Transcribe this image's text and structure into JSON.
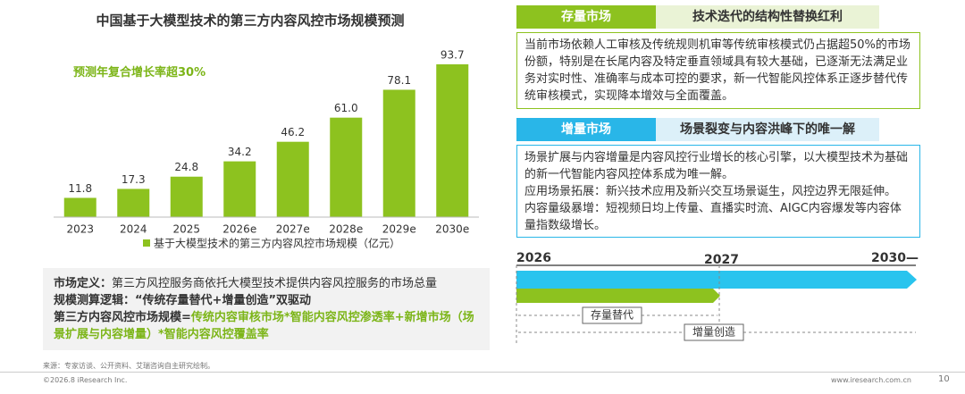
{
  "chart_data": {
    "type": "bar",
    "title": "中国基于大模型技术的第三方内容风控市场规模预测",
    "annotation": "预测年复合增长率超30%",
    "categories": [
      "2023",
      "2024",
      "2025",
      "2026e",
      "2027e",
      "2028e",
      "2029e",
      "2030e"
    ],
    "series": [
      {
        "name": "基于大模型技术的第三方内容风控市场规模（亿元）",
        "color": "#8dc21f",
        "values": [
          11.8,
          17.3,
          24.8,
          34.2,
          46.2,
          61.0,
          78.1,
          93.7
        ],
        "value_labels": [
          "11.8",
          "17.3",
          "24.8",
          "34.2",
          "46.2",
          "61.0",
          "78.1",
          "93.7"
        ]
      }
    ]
  },
  "definition": [
    {
      "label": "市场定义：",
      "text": "第三方风控服务商依托大模型技术提供内容风控服务的市场总量"
    },
    {
      "label": "规模测算逻辑：",
      "text": "“传统存量替代+增量创造”双驱动"
    },
    {
      "label": "第三方内容风控市场规模=",
      "text": "传统内容审核市场*智能内容风控渗透率+新增市场（场景扩展与内容增量）*智能内容风控覆盖率"
    }
  ],
  "panels": [
    {
      "tag": "存量市场",
      "heading": "技术迭代的结构性替换红利",
      "body": [
        "当前市场依赖人工审核及传统规则机审等传统审核模式仍占据超50%的市场份额，特别是在长尾内容及特定垂直领域具有较大基础，已逐渐无法满足业务对实时性、准确率与成本可控的要求，新一代智能风控体系正逐步替代传统审核模式，实现降本增效与全面覆盖。"
      ]
    },
    {
      "tag": "增量市场",
      "heading": "场景裂变与内容洪峰下的唯一解",
      "body": [
        "场景扩展与内容增量是内容风控行业增长的核心引擎，以大模型技术为基础的新一代智能内容风控体系成为唯一解。",
        "应用场景拓展：新兴技术应用及新兴交互场景诞生，风控边界无限延伸。",
        "内容量级暴增：短视频日均上传量、直播实时流、AIGC内容爆发等内容体量指数级增长。"
      ]
    }
  ],
  "timeline": {
    "years": [
      "2026",
      "2027",
      "2030—"
    ],
    "phases": [
      "存量替代",
      "增量创造"
    ]
  },
  "footer": {
    "source": "来源：专家访谈、公开资料、艾瑞咨询自主研究绘制。",
    "copyright": "©2026.8 iResearch Inc.",
    "website": "www.iresearch.com.cn",
    "page": "10"
  }
}
